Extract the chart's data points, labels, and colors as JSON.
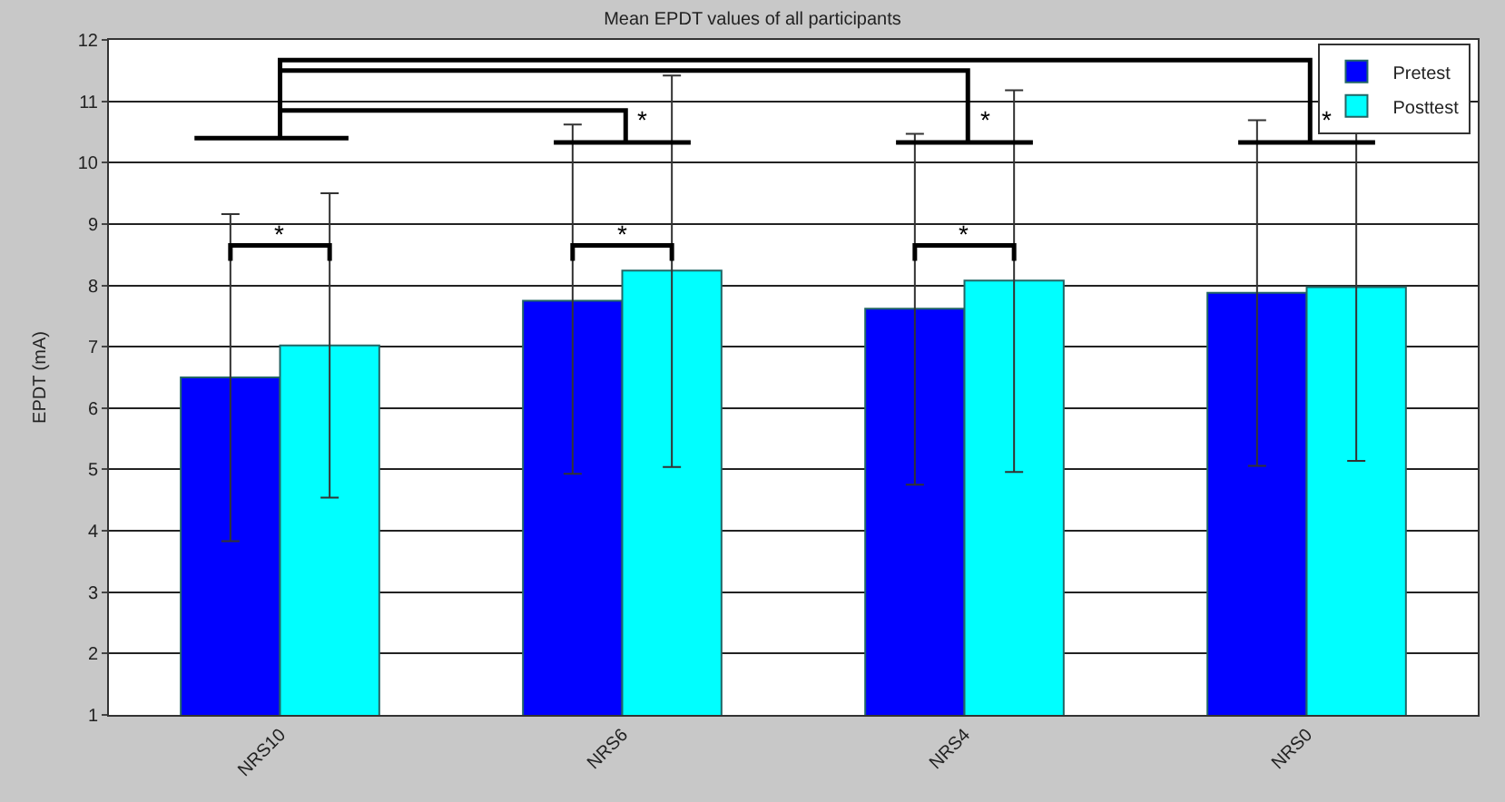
{
  "chart_data": {
    "type": "bar",
    "title": "Mean EPDT values of all participants",
    "ylabel": "EPDT (mA)",
    "categories": [
      "NRS10",
      "NRS6",
      "NRS4",
      "NRS0"
    ],
    "series": [
      {
        "name": "Pretest",
        "color": "#0000ff",
        "values": [
          6.5,
          7.75,
          7.62,
          7.88
        ],
        "errors": [
          [
            3.83,
            9.16
          ],
          [
            4.93,
            10.62
          ],
          [
            4.75,
            10.47
          ],
          [
            5.06,
            10.69
          ]
        ]
      },
      {
        "name": "Posttest",
        "color": "#00ffff",
        "values": [
          7.02,
          8.24,
          8.08,
          7.97
        ],
        "errors": [
          [
            4.54,
            9.5
          ],
          [
            5.04,
            11.42
          ],
          [
            4.96,
            11.18
          ],
          [
            5.14,
            10.79
          ]
        ]
      }
    ],
    "ylim": [
      1,
      12
    ],
    "yticks": [
      1,
      2,
      3,
      4,
      5,
      6,
      7,
      8,
      9,
      10,
      11,
      12
    ],
    "grid": "y",
    "legend": "top right",
    "annotations": [
      "*",
      "*",
      "*",
      "*",
      "*",
      "*"
    ]
  }
}
